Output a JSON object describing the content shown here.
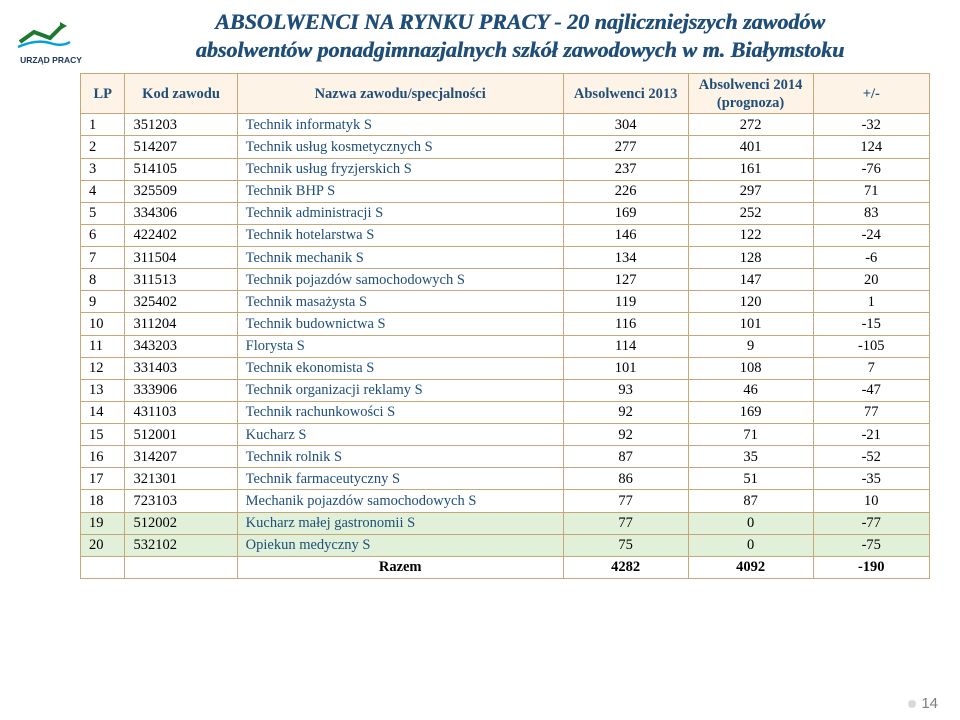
{
  "title_line1": "ABSOLWENCI NA RYNKU PRACY  - 20 najliczniejszych zawodów",
  "title_line2": "absolwentów ponadgimnazjalnych szkół zawodowych w m. Białymstoku",
  "page_number": "14",
  "headers": {
    "lp": "LP",
    "code": "Kod zawodu",
    "name": "Nazwa zawodu/specjalności",
    "a2013": "Absolwenci 2013",
    "a2014": "Absolwenci 2014 (prognoza)",
    "delta": "+/-"
  },
  "col_widths": {
    "lp": "42px",
    "code": "106px",
    "name": "308px",
    "a2013": "118px",
    "a2014": "118px",
    "delta": "110px"
  },
  "rows": [
    {
      "lp": "1",
      "code": "351203",
      "name": "Technik informatyk S",
      "a": "304",
      "b": "272",
      "d": "-32",
      "hi": false
    },
    {
      "lp": "2",
      "code": "514207",
      "name": "Technik usług kosmetycznych S",
      "a": "277",
      "b": "401",
      "d": "124",
      "hi": false
    },
    {
      "lp": "3",
      "code": "514105",
      "name": "Technik usług fryzjerskich S",
      "a": "237",
      "b": "161",
      "d": "-76",
      "hi": false
    },
    {
      "lp": "4",
      "code": "325509",
      "name": "Technik BHP S",
      "a": "226",
      "b": "297",
      "d": "71",
      "hi": false
    },
    {
      "lp": "5",
      "code": "334306",
      "name": "Technik administracji S",
      "a": "169",
      "b": "252",
      "d": "83",
      "hi": false
    },
    {
      "lp": "6",
      "code": "422402",
      "name": "Technik hotelarstwa S",
      "a": "146",
      "b": "122",
      "d": "-24",
      "hi": false
    },
    {
      "lp": "7",
      "code": "311504",
      "name": "Technik mechanik S",
      "a": "134",
      "b": "128",
      "d": "-6",
      "hi": false
    },
    {
      "lp": "8",
      "code": "311513",
      "name": "Technik pojazdów samochodowych S",
      "a": "127",
      "b": "147",
      "d": "20",
      "hi": false
    },
    {
      "lp": "9",
      "code": "325402",
      "name": "Technik masażysta S",
      "a": "119",
      "b": "120",
      "d": "1",
      "hi": false
    },
    {
      "lp": "10",
      "code": "311204",
      "name": "Technik budownictwa S",
      "a": "116",
      "b": "101",
      "d": "-15",
      "hi": false
    },
    {
      "lp": "11",
      "code": "343203",
      "name": "Florysta S",
      "a": "114",
      "b": "9",
      "d": "-105",
      "hi": false
    },
    {
      "lp": "12",
      "code": "331403",
      "name": "Technik ekonomista S",
      "a": "101",
      "b": "108",
      "d": "7",
      "hi": false
    },
    {
      "lp": "13",
      "code": "333906",
      "name": "Technik organizacji reklamy S",
      "a": "93",
      "b": "46",
      "d": "-47",
      "hi": false
    },
    {
      "lp": "14",
      "code": "431103",
      "name": "Technik rachunkowości S",
      "a": "92",
      "b": "169",
      "d": "77",
      "hi": false
    },
    {
      "lp": "15",
      "code": "512001",
      "name": "Kucharz S",
      "a": "92",
      "b": "71",
      "d": "-21",
      "hi": false
    },
    {
      "lp": "16",
      "code": "314207",
      "name": "Technik rolnik S",
      "a": "87",
      "b": "35",
      "d": "-52",
      "hi": false
    },
    {
      "lp": "17",
      "code": "321301",
      "name": "Technik farmaceutyczny S",
      "a": "86",
      "b": "51",
      "d": "-35",
      "hi": false
    },
    {
      "lp": "18",
      "code": "723103",
      "name": "Mechanik pojazdów samochodowych S",
      "a": "77",
      "b": "87",
      "d": "10",
      "hi": false
    },
    {
      "lp": "19",
      "code": "512002",
      "name": "Kucharz małej gastronomii S",
      "a": "77",
      "b": "0",
      "d": "-77",
      "hi": true
    },
    {
      "lp": "20",
      "code": "532102",
      "name": "Opiekun medyczny S",
      "a": "75",
      "b": "0",
      "d": "-75",
      "hi": true
    }
  ],
  "total": {
    "label": "Razem",
    "a": "4282",
    "b": "4092",
    "d": "-190"
  },
  "colors": {
    "header_text": "#1f4e79",
    "header_bg": "#fdf3e7",
    "border": "#c6a77a",
    "name_text": "#1f4e79",
    "highlight_bg": "#e1f0d8",
    "pagenum": "#7f7f7f",
    "bullet": "#d9d9d9"
  },
  "logo_caption": "URZĄD PRACY"
}
